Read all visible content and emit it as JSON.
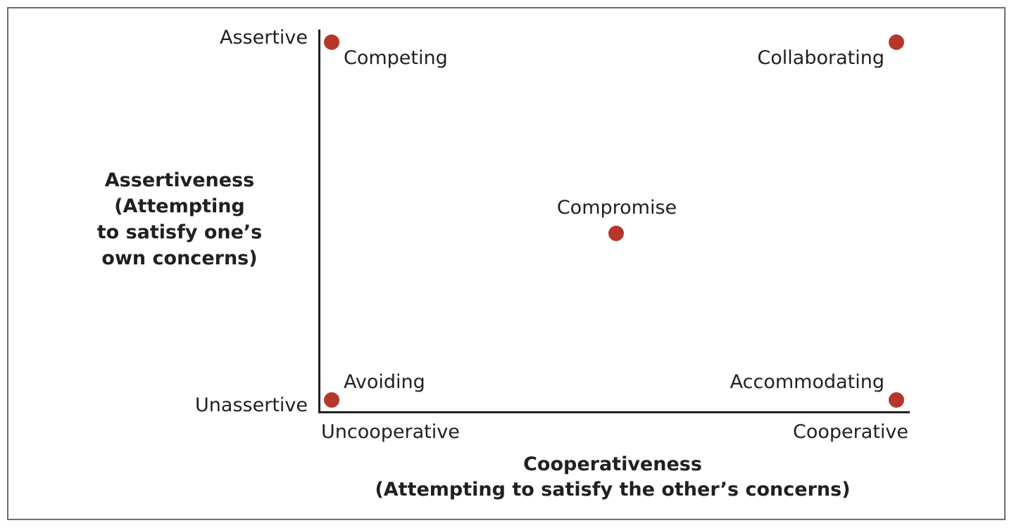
{
  "y_axis": {
    "title_lines": [
      "Assertiveness",
      "(Attempting",
      "to satisfy one’s",
      "own concerns)"
    ],
    "high_label": "Assertive",
    "low_label": "Unassertive"
  },
  "x_axis": {
    "title_lines": [
      "Cooperativeness",
      "(Attempting to satisfy the other’s concerns)"
    ],
    "low_label": "Uncooperative",
    "high_label": "Cooperative"
  },
  "styles": [
    {
      "label": "Competing"
    },
    {
      "label": "Collaborating"
    },
    {
      "label": "Compromise"
    },
    {
      "label": "Avoiding"
    },
    {
      "label": "Accommodating"
    }
  ],
  "colors": {
    "dot": "#b5372b",
    "axis": "#231f20",
    "border": "#6d6e71"
  }
}
